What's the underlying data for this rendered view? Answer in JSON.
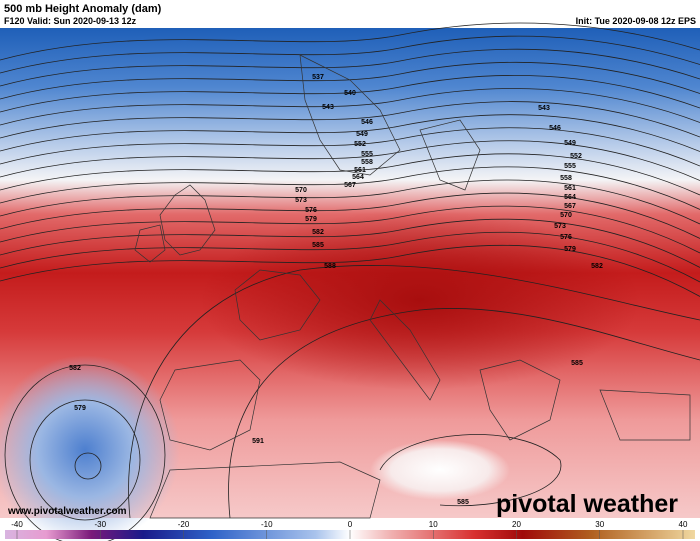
{
  "header": {
    "title": "500 mb Height Anomaly (dam)",
    "valid": "F120 Valid: Sun 2020-09-13 12z",
    "init": "Init: Tue 2020-09-08 12z EPS"
  },
  "contour_labels": [
    "537",
    "540",
    "543",
    "546",
    "549",
    "552",
    "555",
    "558",
    "561",
    "564",
    "567",
    "570",
    "573",
    "576",
    "579",
    "582",
    "585",
    "588",
    "543",
    "546",
    "549",
    "552",
    "555",
    "558",
    "561",
    "564",
    "567",
    "570",
    "573",
    "576",
    "579",
    "582",
    "585",
    "582",
    "579",
    "591",
    "585"
  ],
  "colorbar": {
    "ticks": [
      -40,
      -30,
      -20,
      -10,
      0,
      10,
      20,
      30,
      40
    ]
  },
  "footer": {
    "website": "www.pivotalweather.com",
    "logo": "pivotal weather"
  }
}
